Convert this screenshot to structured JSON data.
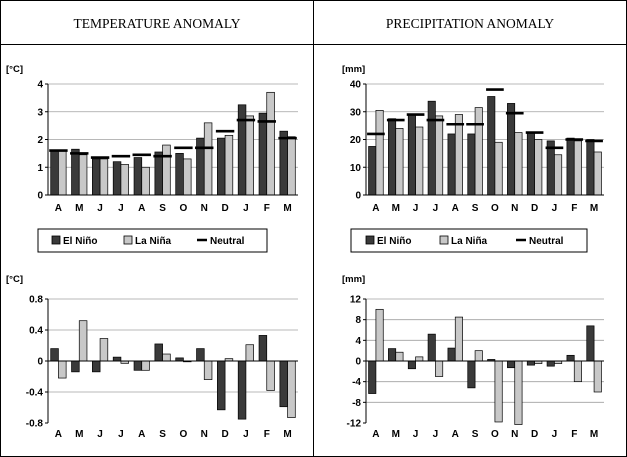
{
  "headers": {
    "left": "TEMPERATURE ANOMALY",
    "right": "PRECIPITATION ANOMALY"
  },
  "legend": {
    "el_nino": "El Niño",
    "la_nina": "La Niña",
    "neutral": "Neutral"
  },
  "colors": {
    "el_nino": "#3a3a3a",
    "la_nina": "#c8c8c8",
    "neutral": "#000000",
    "grid": "#a0a0a0"
  },
  "chart_data": [
    {
      "id": "temp-abs",
      "type": "bar",
      "ylabel": "[°C]",
      "categories": [
        "A",
        "M",
        "J",
        "J",
        "A",
        "S",
        "O",
        "N",
        "D",
        "J",
        "F",
        "M"
      ],
      "ylim": [
        0,
        4
      ],
      "yticks": [
        "0",
        "1",
        "2",
        "3",
        "4"
      ],
      "tick_values": [
        0,
        1,
        2,
        3,
        4
      ],
      "grid": true,
      "series": [
        {
          "name": "El Niño",
          "kind": "bar",
          "values": [
            1.6,
            1.65,
            1.3,
            1.2,
            1.35,
            1.55,
            1.5,
            2.05,
            2.05,
            3.25,
            2.95,
            2.3
          ]
        },
        {
          "name": "La Niña",
          "kind": "bar",
          "values": [
            1.6,
            1.45,
            1.3,
            1.1,
            1.0,
            1.8,
            1.3,
            2.6,
            2.15,
            2.85,
            3.7,
            2.1
          ]
        },
        {
          "name": "Neutral",
          "kind": "dash",
          "values": [
            1.6,
            1.5,
            1.35,
            1.4,
            1.45,
            1.4,
            1.7,
            1.7,
            2.3,
            2.7,
            2.65,
            2.05
          ]
        }
      ]
    },
    {
      "id": "precip-abs",
      "type": "bar",
      "ylabel": "[mm]",
      "categories": [
        "A",
        "M",
        "J",
        "J",
        "A",
        "S",
        "O",
        "N",
        "D",
        "J",
        "F",
        "M"
      ],
      "ylim": [
        0,
        40
      ],
      "yticks": [
        "0",
        "10",
        "20",
        "30",
        "40"
      ],
      "tick_values": [
        0,
        10,
        20,
        30,
        40
      ],
      "grid": true,
      "series": [
        {
          "name": "El Niño",
          "kind": "bar",
          "values": [
            17.5,
            27.5,
            29,
            33.8,
            22,
            22,
            35.5,
            33,
            22.5,
            19.5,
            20.5,
            20
          ]
        },
        {
          "name": "La Niña",
          "kind": "bar",
          "values": [
            30.5,
            24,
            24.5,
            28.5,
            29,
            31.5,
            19,
            22.5,
            20,
            14.5,
            19.5,
            15.5
          ]
        },
        {
          "name": "Neutral",
          "kind": "dash",
          "values": [
            22,
            27,
            29,
            27,
            25.5,
            25.5,
            38,
            29.5,
            22.5,
            17,
            20,
            19.5
          ]
        }
      ]
    },
    {
      "id": "temp-anom",
      "type": "bar",
      "ylabel": "[°C]",
      "categories": [
        "A",
        "M",
        "J",
        "J",
        "A",
        "S",
        "O",
        "N",
        "D",
        "J",
        "F",
        "M"
      ],
      "ylim": [
        -0.8,
        0.8
      ],
      "yticks": [
        "-0.8",
        "-0.4",
        "0",
        "0.4",
        "0.8"
      ],
      "tick_values": [
        -0.8,
        -0.4,
        0,
        0.4,
        0.8
      ],
      "grid": true,
      "series": [
        {
          "name": "El Niño",
          "kind": "bar",
          "values": [
            0.16,
            -0.14,
            -0.14,
            0.05,
            -0.12,
            0.22,
            0.04,
            0.16,
            -0.63,
            -0.75,
            0.33,
            -0.59
          ]
        },
        {
          "name": "La Niña",
          "kind": "bar",
          "values": [
            -0.22,
            0.52,
            0.29,
            -0.03,
            -0.12,
            0.09,
            0.0,
            -0.24,
            0.03,
            0.21,
            -0.38,
            -0.73
          ]
        }
      ]
    },
    {
      "id": "precip-anom",
      "type": "bar",
      "ylabel": "[mm]",
      "categories": [
        "A",
        "M",
        "J",
        "J",
        "A",
        "S",
        "O",
        "N",
        "D",
        "J",
        "F",
        "M"
      ],
      "ylim": [
        -12,
        12
      ],
      "yticks": [
        "-12",
        "-8",
        "-4",
        "0",
        "4",
        "8",
        "12"
      ],
      "tick_values": [
        -12,
        -8,
        -4,
        0,
        4,
        8,
        12
      ],
      "grid": true,
      "series": [
        {
          "name": "El Niño",
          "kind": "bar",
          "values": [
            -6.3,
            2.4,
            -1.5,
            5.2,
            2.5,
            -5.2,
            0.3,
            -1.3,
            -0.8,
            -1.0,
            1.1,
            6.8
          ]
        },
        {
          "name": "La Niña",
          "kind": "bar",
          "values": [
            10.0,
            1.7,
            0.8,
            -3.0,
            8.5,
            2.0,
            -11.8,
            -12.3,
            -0.5,
            -0.5,
            -4.0,
            -6.0
          ]
        }
      ]
    }
  ]
}
